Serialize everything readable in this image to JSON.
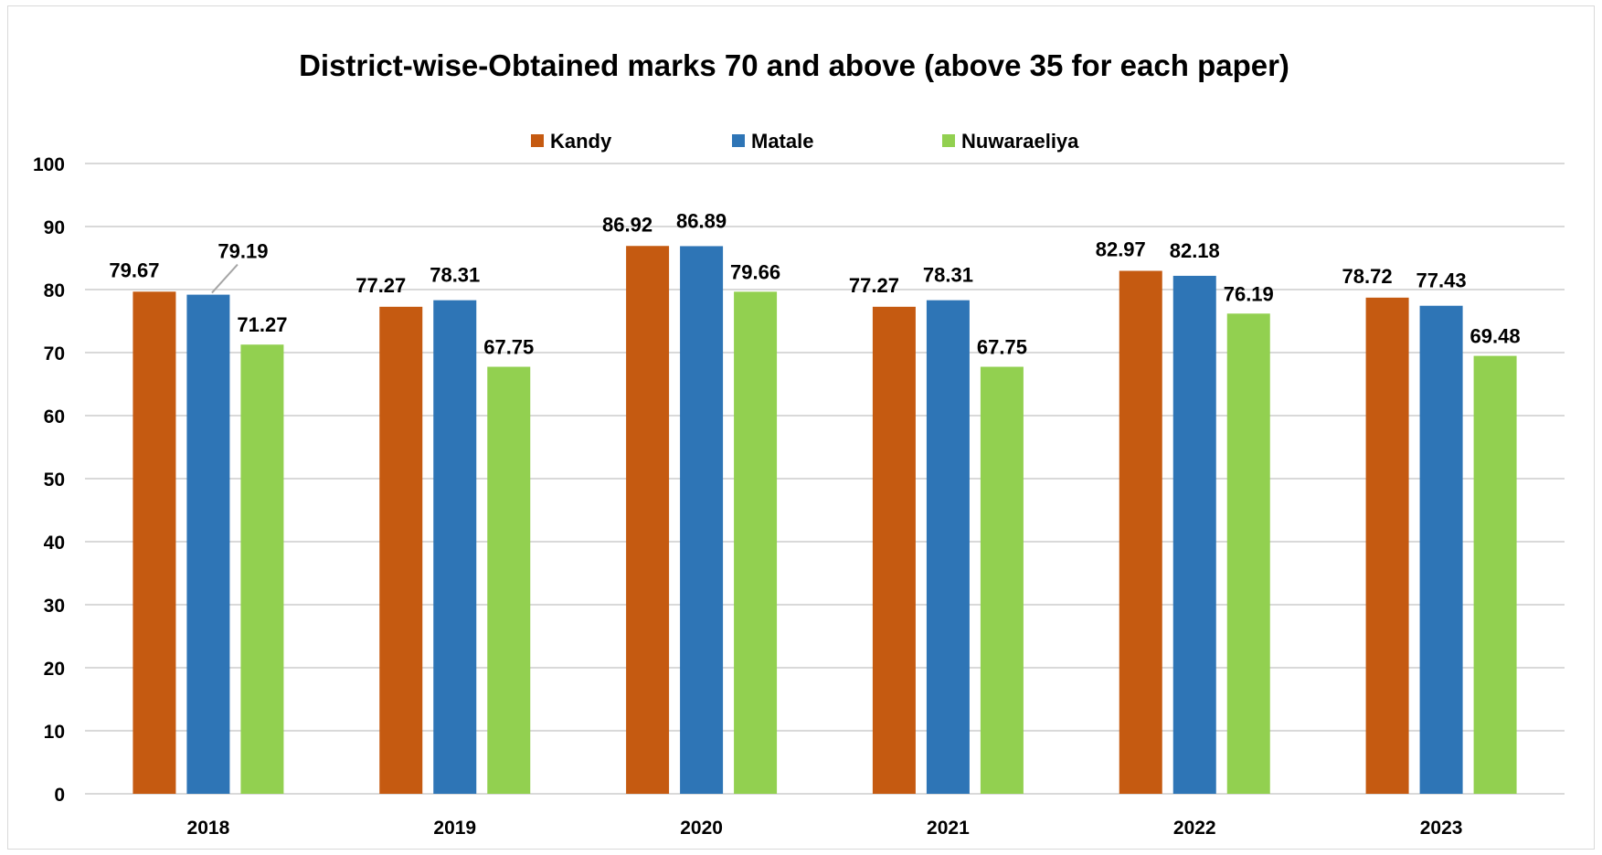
{
  "chart_data": {
    "type": "bar",
    "title": "District-wise-Obtained marks 70 and above (above 35 for each paper)",
    "xlabel": "",
    "ylabel": "",
    "categories": [
      "2018",
      "2019",
      "2020",
      "2021",
      "2022",
      "2023"
    ],
    "series": [
      {
        "name": "Kandy",
        "color": "#c55a11",
        "values": [
          79.67,
          77.27,
          86.92,
          77.27,
          82.97,
          78.72
        ]
      },
      {
        "name": "Matale",
        "color": "#2e75b6",
        "values": [
          79.19,
          78.31,
          86.89,
          78.31,
          82.18,
          77.43
        ]
      },
      {
        "name": "Nuwaraeliya",
        "color": "#92d050",
        "values": [
          71.27,
          67.75,
          79.66,
          67.75,
          76.19,
          69.48
        ]
      }
    ],
    "ylim": [
      0,
      100
    ],
    "yticks": [
      0,
      10,
      20,
      30,
      40,
      50,
      60,
      70,
      80,
      90,
      100
    ],
    "grid": true,
    "legend_position": "top-center",
    "data_labels": true
  }
}
